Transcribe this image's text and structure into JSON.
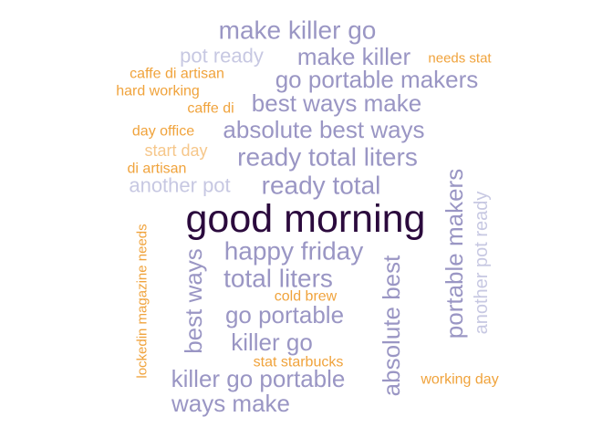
{
  "chart_data": {
    "type": "wordcloud",
    "palette": {
      "dark": "#2b0a3d",
      "purple": "#9a96c4",
      "lavender": "#c7c8e2",
      "orange": "#f0a33c",
      "peach": "#f6c78b"
    },
    "words": [
      {
        "text": "good morning",
        "color": "#2b0a3d",
        "rotated": false
      },
      {
        "text": "make killer go",
        "color": "#9a96c4",
        "rotated": false
      },
      {
        "text": "pot ready",
        "color": "#c7c8e2",
        "rotated": false
      },
      {
        "text": "make killer",
        "color": "#9a96c4",
        "rotated": false
      },
      {
        "text": "needs stat",
        "color": "#f0a33c",
        "rotated": false
      },
      {
        "text": "caffe di artisan",
        "color": "#f0a33c",
        "rotated": false
      },
      {
        "text": "go portable makers",
        "color": "#9a96c4",
        "rotated": false
      },
      {
        "text": "hard working",
        "color": "#f0a33c",
        "rotated": false
      },
      {
        "text": "best ways make",
        "color": "#9a96c4",
        "rotated": false
      },
      {
        "text": "caffe di",
        "color": "#f0a33c",
        "rotated": false
      },
      {
        "text": "day office",
        "color": "#f0a33c",
        "rotated": false
      },
      {
        "text": "absolute best ways",
        "color": "#9a96c4",
        "rotated": false
      },
      {
        "text": "start day",
        "color": "#f6c78b",
        "rotated": false
      },
      {
        "text": "ready total liters",
        "color": "#9a96c4",
        "rotated": false
      },
      {
        "text": "di artisan",
        "color": "#f0a33c",
        "rotated": false
      },
      {
        "text": "another pot",
        "color": "#c7c8e2",
        "rotated": false
      },
      {
        "text": "ready total",
        "color": "#9a96c4",
        "rotated": false
      },
      {
        "text": "happy friday",
        "color": "#9a96c4",
        "rotated": false
      },
      {
        "text": "total liters",
        "color": "#9a96c4",
        "rotated": false
      },
      {
        "text": "cold brew",
        "color": "#f0a33c",
        "rotated": false
      },
      {
        "text": "go portable",
        "color": "#9a96c4",
        "rotated": false
      },
      {
        "text": "killer go",
        "color": "#9a96c4",
        "rotated": false
      },
      {
        "text": "stat starbucks",
        "color": "#f0a33c",
        "rotated": false
      },
      {
        "text": "killer go portable",
        "color": "#9a96c4",
        "rotated": false
      },
      {
        "text": "working day",
        "color": "#f0a33c",
        "rotated": false
      },
      {
        "text": "ways make",
        "color": "#9a96c4",
        "rotated": false
      },
      {
        "text": "lockedin magazine needs",
        "color": "#f0a33c",
        "rotated": true
      },
      {
        "text": "best ways",
        "color": "#9a96c4",
        "rotated": true
      },
      {
        "text": "absolute best",
        "color": "#9a96c4",
        "rotated": true
      },
      {
        "text": "portable makers",
        "color": "#9a96c4",
        "rotated": true
      },
      {
        "text": "another pot ready",
        "color": "#c7c8e2",
        "rotated": true
      }
    ]
  }
}
